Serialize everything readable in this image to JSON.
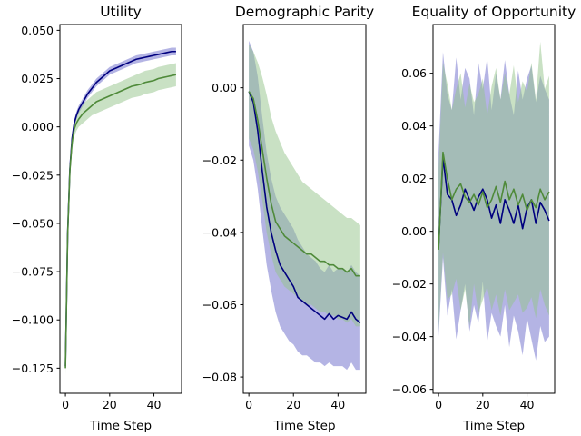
{
  "chart_data": [
    {
      "type": "line",
      "title": "Utility",
      "xlabel": "Time Step",
      "ylabel": "",
      "xlim": [
        -2.5,
        52.5
      ],
      "ylim": [
        -0.138,
        0.053
      ],
      "xticks": [
        0,
        20,
        40
      ],
      "yticks": [
        -0.125,
        -0.1,
        -0.075,
        -0.05,
        -0.025,
        0.0,
        0.025,
        0.05
      ],
      "ytick_labels": [
        "−0.125",
        "−0.100",
        "−0.075",
        "−0.050",
        "−0.025",
        "0.000",
        "0.025",
        "0.050"
      ],
      "series": [
        {
          "color": "#00007f",
          "band_color": "#6a6ac9",
          "x": [
            0,
            1,
            2,
            3,
            4,
            5,
            6,
            8,
            10,
            12,
            14,
            16,
            18,
            20,
            22,
            24,
            26,
            28,
            30,
            32,
            34,
            36,
            38,
            40,
            42,
            44,
            46,
            48,
            50
          ],
          "y": [
            -0.124,
            -0.055,
            -0.022,
            -0.006,
            0.002,
            0.006,
            0.009,
            0.013,
            0.017,
            0.02,
            0.023,
            0.025,
            0.027,
            0.029,
            0.03,
            0.031,
            0.032,
            0.033,
            0.034,
            0.035,
            0.0355,
            0.036,
            0.0365,
            0.037,
            0.0375,
            0.038,
            0.0385,
            0.039,
            0.039
          ],
          "lower": [
            -0.126,
            -0.058,
            -0.024,
            -0.008,
            0.0,
            0.004,
            0.007,
            0.011,
            0.015,
            0.018,
            0.021,
            0.023,
            0.025,
            0.027,
            0.028,
            0.029,
            0.03,
            0.031,
            0.032,
            0.033,
            0.0335,
            0.034,
            0.0345,
            0.035,
            0.0355,
            0.036,
            0.0365,
            0.037,
            0.037
          ],
          "upper": [
            -0.121,
            -0.052,
            -0.019,
            -0.004,
            0.004,
            0.008,
            0.011,
            0.015,
            0.019,
            0.022,
            0.025,
            0.027,
            0.029,
            0.031,
            0.032,
            0.033,
            0.034,
            0.035,
            0.036,
            0.037,
            0.0375,
            0.038,
            0.0385,
            0.039,
            0.0395,
            0.04,
            0.0405,
            0.041,
            0.041
          ]
        },
        {
          "color": "#4f8a3a",
          "band_color": "#94c48a",
          "x": [
            0,
            1,
            2,
            3,
            4,
            5,
            6,
            8,
            10,
            12,
            14,
            16,
            18,
            20,
            22,
            24,
            26,
            28,
            30,
            32,
            34,
            36,
            38,
            40,
            42,
            44,
            46,
            48,
            50
          ],
          "y": [
            -0.125,
            -0.056,
            -0.023,
            -0.008,
            -0.001,
            0.002,
            0.004,
            0.007,
            0.009,
            0.011,
            0.013,
            0.014,
            0.015,
            0.016,
            0.017,
            0.018,
            0.019,
            0.02,
            0.021,
            0.0215,
            0.022,
            0.023,
            0.0235,
            0.024,
            0.025,
            0.0255,
            0.026,
            0.0265,
            0.027
          ],
          "lower": [
            -0.129,
            -0.06,
            -0.027,
            -0.012,
            -0.005,
            -0.002,
            0.0,
            0.002,
            0.004,
            0.006,
            0.007,
            0.008,
            0.009,
            0.01,
            0.011,
            0.012,
            0.013,
            0.014,
            0.015,
            0.0155,
            0.016,
            0.017,
            0.0175,
            0.018,
            0.019,
            0.0195,
            0.02,
            0.0205,
            0.021
          ],
          "upper": [
            -0.121,
            -0.052,
            -0.019,
            -0.004,
            0.003,
            0.006,
            0.008,
            0.012,
            0.014,
            0.016,
            0.018,
            0.019,
            0.02,
            0.021,
            0.022,
            0.023,
            0.024,
            0.025,
            0.026,
            0.027,
            0.028,
            0.029,
            0.0295,
            0.03,
            0.031,
            0.0315,
            0.032,
            0.0325,
            0.033
          ]
        }
      ]
    },
    {
      "type": "line",
      "title": "Demographic Parity",
      "xlabel": "Time Step",
      "ylabel": "",
      "xlim": [
        -2.5,
        52.5
      ],
      "ylim": [
        -0.0845,
        0.0175
      ],
      "xticks": [
        0,
        20,
        40
      ],
      "yticks": [
        -0.08,
        -0.06,
        -0.04,
        -0.02,
        0.0
      ],
      "ytick_labels": [
        "−0.08",
        "−0.06",
        "−0.04",
        "−0.02",
        "0.00"
      ],
      "series": [
        {
          "color": "#00007f",
          "band_color": "#6a6ac9",
          "x": [
            0,
            2,
            4,
            6,
            8,
            10,
            12,
            14,
            16,
            18,
            20,
            22,
            24,
            26,
            28,
            30,
            32,
            34,
            36,
            38,
            40,
            42,
            44,
            46,
            48,
            50
          ],
          "y": [
            -0.001,
            -0.004,
            -0.012,
            -0.023,
            -0.033,
            -0.04,
            -0.045,
            -0.049,
            -0.051,
            -0.053,
            -0.055,
            -0.058,
            -0.059,
            -0.06,
            -0.061,
            -0.062,
            -0.063,
            -0.064,
            -0.0625,
            -0.064,
            -0.063,
            -0.0635,
            -0.064,
            -0.062,
            -0.064,
            -0.065
          ],
          "lower": [
            -0.016,
            -0.02,
            -0.028,
            -0.039,
            -0.049,
            -0.056,
            -0.062,
            -0.066,
            -0.068,
            -0.07,
            -0.071,
            -0.073,
            -0.074,
            -0.074,
            -0.075,
            -0.076,
            -0.076,
            -0.077,
            -0.076,
            -0.077,
            -0.077,
            -0.077,
            -0.078,
            -0.076,
            -0.078,
            -0.078
          ],
          "upper": [
            0.013,
            0.01,
            0.003,
            -0.008,
            -0.018,
            -0.025,
            -0.03,
            -0.033,
            -0.035,
            -0.037,
            -0.039,
            -0.042,
            -0.044,
            -0.046,
            -0.047,
            -0.048,
            -0.05,
            -0.051,
            -0.049,
            -0.051,
            -0.05,
            -0.05,
            -0.051,
            -0.049,
            -0.051,
            -0.052
          ]
        },
        {
          "color": "#4f8a3a",
          "band_color": "#94c48a",
          "x": [
            0,
            2,
            4,
            6,
            8,
            10,
            12,
            14,
            16,
            18,
            20,
            22,
            24,
            26,
            28,
            30,
            32,
            34,
            36,
            38,
            40,
            42,
            44,
            46,
            48,
            50
          ],
          "y": [
            -0.001,
            -0.003,
            -0.009,
            -0.017,
            -0.025,
            -0.032,
            -0.037,
            -0.039,
            -0.041,
            -0.042,
            -0.043,
            -0.044,
            -0.045,
            -0.046,
            -0.046,
            -0.047,
            -0.048,
            -0.048,
            -0.049,
            -0.049,
            -0.05,
            -0.05,
            -0.051,
            -0.05,
            -0.052,
            -0.052
          ],
          "lower": [
            -0.014,
            -0.017,
            -0.023,
            -0.031,
            -0.04,
            -0.046,
            -0.051,
            -0.053,
            -0.055,
            -0.056,
            -0.057,
            -0.058,
            -0.059,
            -0.06,
            -0.06,
            -0.061,
            -0.062,
            -0.062,
            -0.063,
            -0.063,
            -0.064,
            -0.064,
            -0.065,
            -0.064,
            -0.066,
            -0.066
          ],
          "upper": [
            0.012,
            0.01,
            0.007,
            0.003,
            -0.002,
            -0.008,
            -0.012,
            -0.015,
            -0.018,
            -0.02,
            -0.022,
            -0.024,
            -0.026,
            -0.027,
            -0.028,
            -0.029,
            -0.03,
            -0.031,
            -0.032,
            -0.033,
            -0.034,
            -0.035,
            -0.036,
            -0.036,
            -0.037,
            -0.038
          ]
        }
      ]
    },
    {
      "type": "line",
      "title": "Equality of Opportunity",
      "xlabel": "Time Step",
      "ylabel": "",
      "xlim": [
        -2.5,
        52.5
      ],
      "ylim": [
        -0.0615,
        0.0785
      ],
      "xticks": [
        0,
        20,
        40
      ],
      "yticks": [
        -0.06,
        -0.04,
        -0.02,
        0.0,
        0.02,
        0.04,
        0.06
      ],
      "ytick_labels": [
        "−0.06",
        "−0.04",
        "−0.02",
        "0.00",
        "0.02",
        "0.04",
        "0.06"
      ],
      "series": [
        {
          "color": "#00007f",
          "band_color": "#6a6ac9",
          "x": [
            0,
            2,
            4,
            6,
            8,
            10,
            12,
            14,
            16,
            18,
            20,
            22,
            24,
            26,
            28,
            30,
            32,
            34,
            36,
            38,
            40,
            42,
            44,
            46,
            48,
            50
          ],
          "y": [
            -0.006,
            0.028,
            0.014,
            0.012,
            0.006,
            0.01,
            0.016,
            0.012,
            0.008,
            0.013,
            0.016,
            0.012,
            0.005,
            0.01,
            0.003,
            0.012,
            0.008,
            0.003,
            0.01,
            0.001,
            0.009,
            0.012,
            0.003,
            0.011,
            0.008,
            0.004
          ],
          "lower": [
            -0.04,
            -0.01,
            -0.032,
            -0.022,
            -0.041,
            -0.03,
            -0.02,
            -0.038,
            -0.028,
            -0.035,
            -0.019,
            -0.042,
            -0.031,
            -0.036,
            -0.04,
            -0.028,
            -0.044,
            -0.032,
            -0.038,
            -0.047,
            -0.033,
            -0.041,
            -0.049,
            -0.036,
            -0.042,
            -0.04
          ],
          "upper": [
            0.03,
            0.068,
            0.052,
            0.046,
            0.066,
            0.05,
            0.062,
            0.058,
            0.044,
            0.064,
            0.054,
            0.066,
            0.046,
            0.06,
            0.05,
            0.065,
            0.052,
            0.044,
            0.061,
            0.05,
            0.058,
            0.063,
            0.049,
            0.059,
            0.054,
            0.05
          ]
        },
        {
          "color": "#4f8a3a",
          "band_color": "#94c48a",
          "x": [
            0,
            2,
            4,
            6,
            8,
            10,
            12,
            14,
            16,
            18,
            20,
            22,
            24,
            26,
            28,
            30,
            32,
            34,
            36,
            38,
            40,
            42,
            44,
            46,
            48,
            50
          ],
          "y": [
            -0.007,
            0.03,
            0.02,
            0.012,
            0.016,
            0.018,
            0.013,
            0.011,
            0.014,
            0.01,
            0.015,
            0.009,
            0.012,
            0.017,
            0.011,
            0.019,
            0.012,
            0.016,
            0.01,
            0.014,
            0.008,
            0.012,
            0.009,
            0.016,
            0.012,
            0.015
          ],
          "lower": [
            -0.038,
            -0.008,
            -0.026,
            -0.024,
            -0.018,
            -0.03,
            -0.022,
            -0.036,
            -0.02,
            -0.031,
            -0.026,
            -0.021,
            -0.03,
            -0.024,
            -0.032,
            -0.022,
            -0.03,
            -0.027,
            -0.024,
            -0.031,
            -0.029,
            -0.025,
            -0.033,
            -0.022,
            -0.028,
            -0.032
          ],
          "upper": [
            0.024,
            0.064,
            0.056,
            0.046,
            0.054,
            0.06,
            0.047,
            0.056,
            0.049,
            0.052,
            0.058,
            0.044,
            0.055,
            0.062,
            0.05,
            0.06,
            0.052,
            0.063,
            0.049,
            0.057,
            0.053,
            0.064,
            0.05,
            0.072,
            0.054,
            0.059
          ]
        }
      ]
    }
  ]
}
